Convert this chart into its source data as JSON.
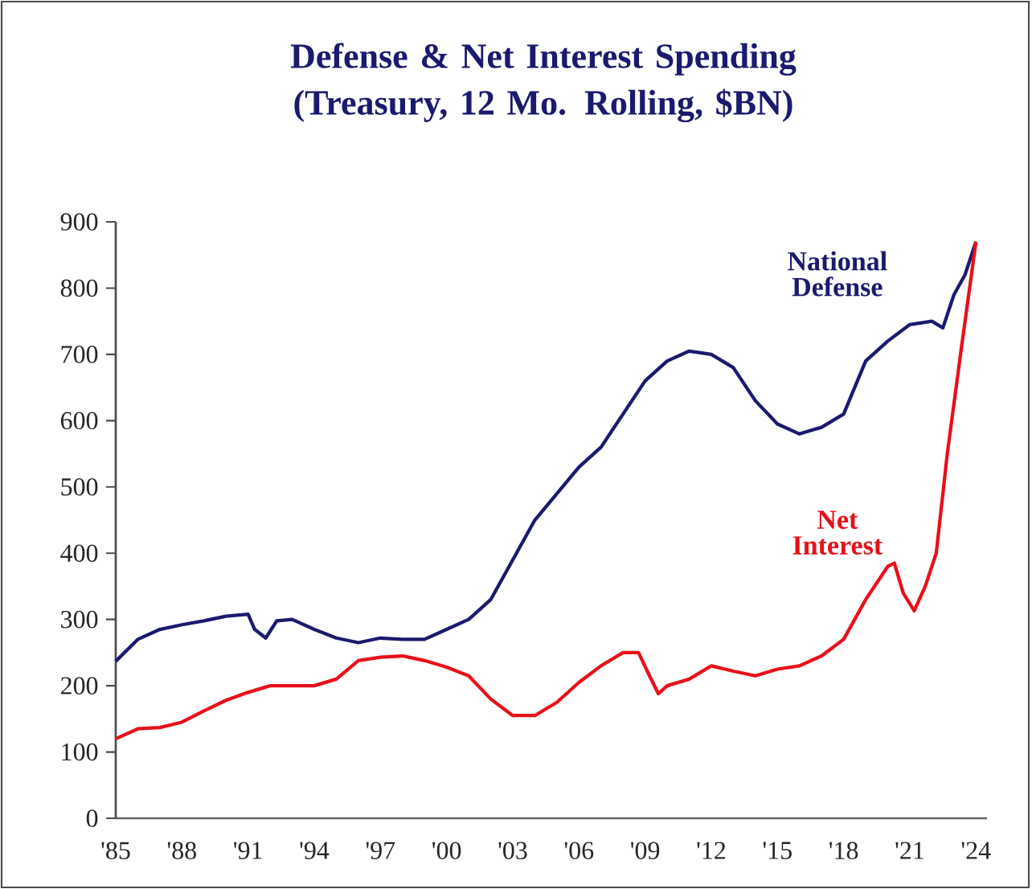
{
  "chart_data": {
    "type": "line",
    "title": "Defense & Net Interest Spending (Treasury, 12 Mo. Rolling, $BN)",
    "xlim": [
      1985,
      2024.5
    ],
    "ylim": [
      0,
      900
    ],
    "xticks": [
      {
        "value": 1985,
        "label": "'85"
      },
      {
        "value": 1988,
        "label": "'88"
      },
      {
        "value": 1991,
        "label": "'91"
      },
      {
        "value": 1994,
        "label": "'94"
      },
      {
        "value": 1997,
        "label": "'97"
      },
      {
        "value": 2000,
        "label": "'00"
      },
      {
        "value": 2003,
        "label": "'03"
      },
      {
        "value": 2006,
        "label": "'06"
      },
      {
        "value": 2009,
        "label": "'09"
      },
      {
        "value": 2012,
        "label": "'12"
      },
      {
        "value": 2015,
        "label": "'15"
      },
      {
        "value": 2018,
        "label": "'18"
      },
      {
        "value": 2021,
        "label": "'21"
      },
      {
        "value": 2024,
        "label": "'24"
      }
    ],
    "yticks": [
      0,
      100,
      200,
      300,
      400,
      500,
      600,
      700,
      800,
      900
    ],
    "grid": false,
    "legend": false,
    "marker": "none",
    "line_style": "solid",
    "series": [
      {
        "name": "National Defense",
        "color": "#1a1a6e",
        "x": [
          1985,
          1986,
          1987,
          1988,
          1989,
          1990,
          1991,
          1991.3,
          1991.8,
          1992.3,
          1993,
          1994,
          1995,
          1996,
          1997,
          1998,
          1999,
          2000,
          2001,
          2002,
          2003,
          2004,
          2005,
          2006,
          2007,
          2008,
          2009,
          2010,
          2011,
          2012,
          2013,
          2014,
          2015,
          2016,
          2017,
          2018,
          2019,
          2020,
          2021,
          2022,
          2022.5,
          2023,
          2023.5,
          2024
        ],
        "values": [
          237,
          270,
          285,
          292,
          298,
          305,
          308,
          285,
          272,
          298,
          300,
          285,
          272,
          265,
          272,
          270,
          270,
          285,
          300,
          330,
          390,
          450,
          490,
          530,
          560,
          610,
          660,
          690,
          705,
          700,
          680,
          630,
          595,
          580,
          590,
          610,
          690,
          720,
          745,
          750,
          740,
          790,
          820,
          870
        ]
      },
      {
        "name": "Net Interest",
        "color": "#e8101a",
        "x": [
          1985,
          1986,
          1987,
          1988,
          1989,
          1990,
          1991,
          1992,
          1993,
          1994,
          1995,
          1996,
          1997,
          1998,
          1999,
          2000,
          2001,
          2002,
          2003,
          2004,
          2005,
          2006,
          2007,
          2008,
          2008.7,
          2009.2,
          2009.6,
          2010,
          2011,
          2012,
          2013,
          2014,
          2015,
          2016,
          2017,
          2018,
          2019,
          2020,
          2020.3,
          2020.7,
          2021.2,
          2021.7,
          2022.2,
          2022.7,
          2023.3,
          2024
        ],
        "values": [
          120,
          135,
          137,
          145,
          162,
          178,
          190,
          200,
          200,
          200,
          210,
          238,
          243,
          245,
          238,
          228,
          215,
          180,
          155,
          155,
          175,
          205,
          230,
          250,
          250,
          215,
          188,
          200,
          210,
          230,
          222,
          215,
          225,
          230,
          245,
          270,
          330,
          380,
          385,
          340,
          313,
          350,
          400,
          550,
          700,
          870
        ]
      }
    ]
  }
}
